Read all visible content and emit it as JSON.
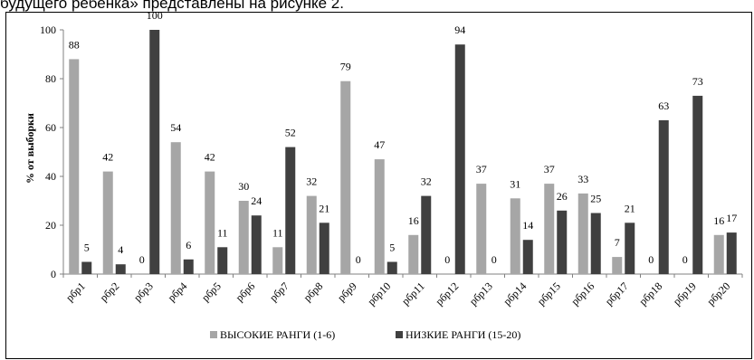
{
  "caption": "будущего ребенка» представлены на рисунке 2.",
  "chart_data": {
    "type": "bar",
    "title": "",
    "ylabel": "% от выборки",
    "xlabel": "",
    "ylim": [
      0,
      100
    ],
    "yticks": [
      0,
      20,
      40,
      60,
      80,
      100
    ],
    "grid": false,
    "legend_position": "bottom",
    "categories": [
      "рбр1",
      "рбр2",
      "рбр3",
      "рбр4",
      "рбр5",
      "рбр6",
      "рбр7",
      "рбр8",
      "рбр9",
      "рбр10",
      "рбр11",
      "рбр12",
      "рбр13",
      "рбр14",
      "рбр15",
      "рбр16",
      "рбр17",
      "рбр18",
      "рбр19",
      "рбр20"
    ],
    "series": [
      {
        "name": "ВЫСОКИЕ РАНГИ (1-6)",
        "color": "#a6a6a6",
        "values": [
          88,
          42,
          0,
          54,
          42,
          30,
          11,
          32,
          79,
          47,
          16,
          0,
          37,
          31,
          37,
          33,
          7,
          0,
          0,
          16
        ]
      },
      {
        "name": "НИЗКИЕ РАНГИ (15-20)",
        "color": "#404040",
        "values": [
          5,
          4,
          100,
          6,
          11,
          24,
          52,
          21,
          0,
          5,
          32,
          94,
          0,
          14,
          26,
          25,
          21,
          63,
          73,
          17
        ]
      }
    ]
  }
}
